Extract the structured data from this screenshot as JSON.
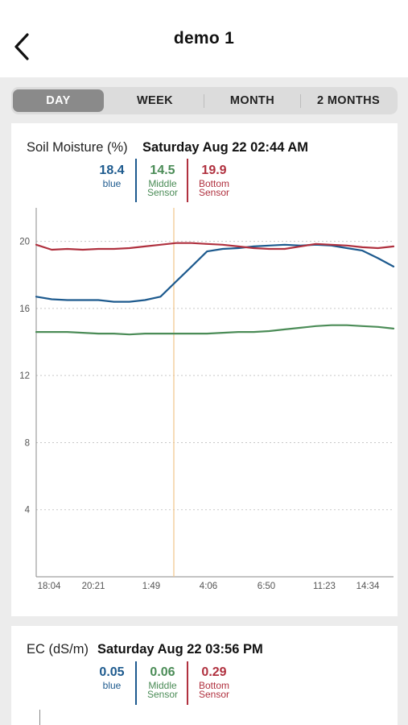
{
  "header": {
    "title": "demo 1"
  },
  "tabs": [
    {
      "label": "DAY",
      "active": true
    },
    {
      "label": "WEEK",
      "active": false
    },
    {
      "label": "MONTH",
      "active": false
    },
    {
      "label": "2 MONTHS",
      "active": false
    }
  ],
  "soil": {
    "title": "Soil Moisture (%)",
    "date": "Saturday Aug 22 02:44 AM",
    "legend": [
      {
        "value": "18.4",
        "label_line1": "blue",
        "label_line2": ""
      },
      {
        "value": "14.5",
        "label_line1": "Middle",
        "label_line2": "Sensor"
      },
      {
        "value": "19.9",
        "label_line1": "Bottom",
        "label_line2": "Sensor"
      }
    ]
  },
  "ec": {
    "title": "EC (dS/m)",
    "date": "Saturday Aug 22 03:56 PM",
    "legend": [
      {
        "value": "0.05",
        "label_line1": "blue",
        "label_line2": ""
      },
      {
        "value": "0.06",
        "label_line1": "Middle",
        "label_line2": "Sensor"
      },
      {
        "value": "0.29",
        "label_line1": "Bottom",
        "label_line2": "Sensor"
      }
    ]
  },
  "colors": {
    "blue": "#1d5a8e",
    "green": "#4b8c57",
    "red": "#b0313f",
    "cursor": "#f0c48a"
  },
  "chart_data": {
    "type": "line",
    "title": "Soil Moisture (%)",
    "xlabel": "",
    "ylabel": "",
    "x_ticks": [
      "18:04",
      "20:21",
      "1:49",
      "4:06",
      "6:50",
      "11:23",
      "14:34"
    ],
    "y_ticks": [
      4,
      8,
      12,
      16,
      20
    ],
    "ylim": [
      0,
      22
    ],
    "grid": true,
    "x": [
      0,
      1,
      2,
      3,
      4,
      5,
      6,
      7,
      8,
      9,
      10,
      11,
      12,
      13,
      14,
      15,
      16,
      17,
      18,
      19,
      20,
      21,
      22,
      23
    ],
    "series": [
      {
        "name": "blue",
        "color": "#1d5a8e",
        "values": [
          16.7,
          16.55,
          16.5,
          16.5,
          16.5,
          16.4,
          16.4,
          16.5,
          16.7,
          17.6,
          18.5,
          19.4,
          19.55,
          19.6,
          19.7,
          19.75,
          19.8,
          19.75,
          19.8,
          19.75,
          19.6,
          19.45,
          19.0,
          18.5
        ]
      },
      {
        "name": "Middle Sensor",
        "color": "#4b8c57",
        "values": [
          14.6,
          14.6,
          14.6,
          14.55,
          14.5,
          14.5,
          14.45,
          14.5,
          14.5,
          14.5,
          14.5,
          14.5,
          14.55,
          14.6,
          14.6,
          14.65,
          14.75,
          14.85,
          14.95,
          15.0,
          15.0,
          14.95,
          14.9,
          14.8
        ]
      },
      {
        "name": "Bottom Sensor",
        "color": "#b0313f",
        "values": [
          19.8,
          19.5,
          19.55,
          19.5,
          19.55,
          19.55,
          19.6,
          19.7,
          19.8,
          19.9,
          19.9,
          19.85,
          19.8,
          19.7,
          19.6,
          19.55,
          19.55,
          19.7,
          19.85,
          19.8,
          19.75,
          19.65,
          19.6,
          19.7
        ]
      }
    ],
    "cursor_time": "Saturday Aug 22 02:44 AM"
  }
}
